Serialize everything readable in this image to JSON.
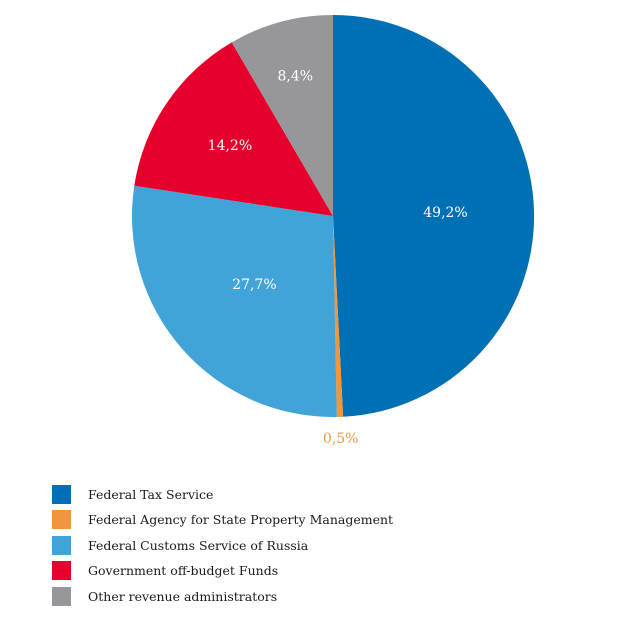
{
  "chart_data": {
    "type": "pie",
    "title": "",
    "start_angle_deg": 0,
    "direction": "clockwise",
    "slices": [
      {
        "name": "Federal Tax Service",
        "value": 49.2,
        "label": "49,2%",
        "color": "#0070b5",
        "label_color": "#ffffff"
      },
      {
        "name": "Federal Agency for State Property Management",
        "value": 0.5,
        "label": "0,5%",
        "color": "#f0963c",
        "label_color": "#f0963c"
      },
      {
        "name": "Federal Customs Service of Russia",
        "value": 27.7,
        "label": "27,7%",
        "color": "#41a3d7",
        "label_color": "#ffffff"
      },
      {
        "name": "Government off-budget Funds",
        "value": 14.2,
        "label": "14,2%",
        "color": "#e8002d",
        "label_color": "#ffffff"
      },
      {
        "name": "Other revenue administrators",
        "value": 8.4,
        "label": "8,4%",
        "color": "#96969b",
        "label_color": "#ffffff"
      }
    ],
    "legend_position": "bottom-left"
  }
}
